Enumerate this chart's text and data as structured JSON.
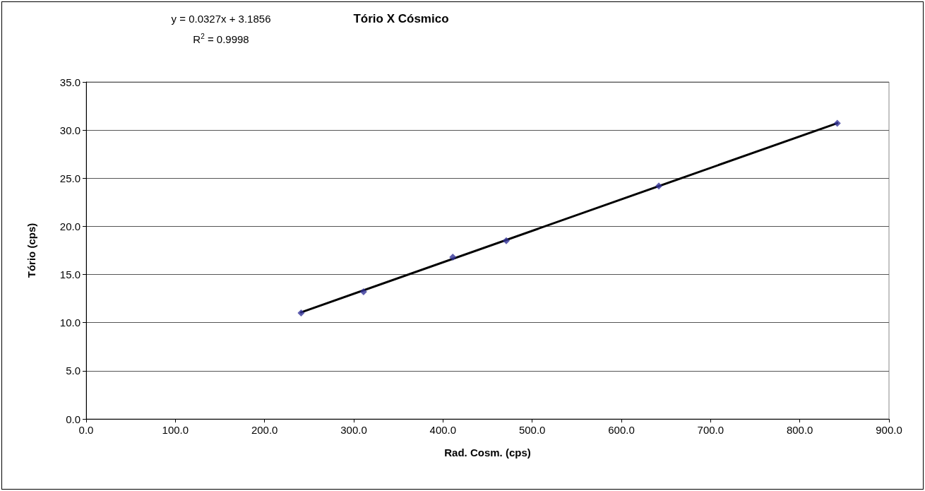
{
  "chart_data": {
    "type": "scatter",
    "title": "Tório X Cósmico",
    "xlabel": "Rad. Cosm. (cps)",
    "ylabel": "Tório (cps)",
    "annotations": [
      "y = 0.0327x + 3.1856",
      "R$^{2}$ = 0.9998"
    ],
    "x": [
      241,
      311,
      411,
      471,
      642,
      842
    ],
    "series": [
      {
        "color": "#333399",
        "values": [
          11.0,
          13.2,
          16.8,
          18.5,
          24.2,
          30.7
        ],
        "marker": "diamond"
      },
      {
        "type": "line",
        "color": "#000000",
        "x": [
          241,
          842
        ],
        "values": [
          11.07,
          30.72
        ],
        "marker": "none",
        "line_style": "solid"
      }
    ],
    "xlim": [
      0,
      900
    ],
    "xticks": [
      {
        "value": 0,
        "label": "0.0"
      },
      {
        "value": 100,
        "label": "100.0"
      },
      {
        "value": 200,
        "label": "200.0"
      },
      {
        "value": 300,
        "label": "300.0"
      },
      {
        "value": 400,
        "label": "400.0"
      },
      {
        "value": 500,
        "label": "500.0"
      },
      {
        "value": 600,
        "label": "600.0"
      },
      {
        "value": 700,
        "label": "700.0"
      },
      {
        "value": 800,
        "label": "800.0"
      },
      {
        "value": 900,
        "label": "900.0"
      }
    ],
    "ylim": [
      0,
      35
    ],
    "yticks": [
      {
        "value": 0,
        "label": "0.0"
      },
      {
        "value": 5,
        "label": "5.0"
      },
      {
        "value": 10,
        "label": "10.0"
      },
      {
        "value": 15,
        "label": "15.0"
      },
      {
        "value": 20,
        "label": "20.0"
      },
      {
        "value": 25,
        "label": "25.0"
      },
      {
        "value": 30,
        "label": "30.0"
      },
      {
        "value": 35,
        "label": "35.0"
      }
    ],
    "grid": "y"
  }
}
